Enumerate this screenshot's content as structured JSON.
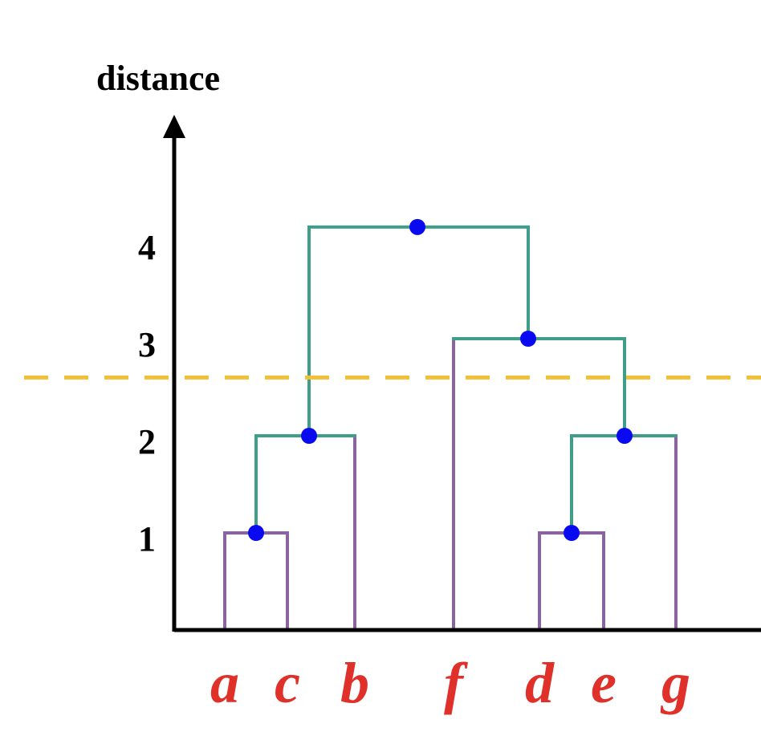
{
  "diagram": {
    "type": "dendrogram",
    "axis_label": "distance",
    "ticks": [
      "1",
      "2",
      "3",
      "4"
    ],
    "leaves": [
      "a",
      "c",
      "b",
      "f",
      "d",
      "e",
      "g"
    ],
    "merges": [
      {
        "children": [
          "a",
          "c"
        ],
        "height": 1
      },
      {
        "children": [
          "ac",
          "b"
        ],
        "height": 2
      },
      {
        "children": [
          "d",
          "e"
        ],
        "height": 1
      },
      {
        "children": [
          "de",
          "g"
        ],
        "height": 2
      },
      {
        "children": [
          "f",
          "deg"
        ],
        "height": 3
      },
      {
        "children": [
          "acb",
          "fdeg"
        ],
        "height": 4.15
      }
    ],
    "cut_height": 2.6,
    "colors": {
      "leaf_branch": "#8a64a0",
      "cluster_branch": "#3f9e8a",
      "node": "#0a0af0",
      "cut_line": "#f0c038",
      "leaf_label": "#e0302a",
      "axis": "#000000"
    }
  }
}
